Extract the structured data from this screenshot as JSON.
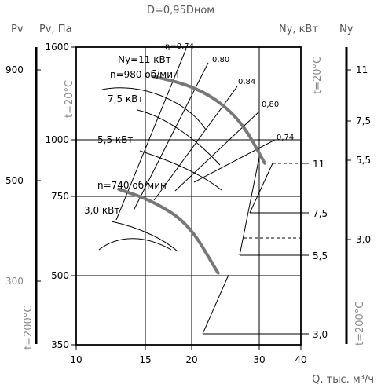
{
  "chart_data": {
    "type": "line",
    "title": "D=0,95Dном",
    "xlabel": "Q, тыс. м³/ч",
    "x_ticks": [
      "10",
      "15",
      "20",
      "30",
      "40"
    ],
    "xlim": [
      10,
      40
    ],
    "x_scale": "log",
    "left_axis_outer": {
      "label": "Pv",
      "ticks": [
        "900",
        "500",
        "300"
      ],
      "temp_label": "t=200°C"
    },
    "left_axis_main": {
      "label": "Pv, Па",
      "ticks": [
        "1600",
        "1000",
        "750",
        "500",
        "350"
      ],
      "temp_label": "t=20°C",
      "ylim": [
        350,
        1600
      ],
      "scale": "log"
    },
    "right_axis_inner": {
      "label": "Ny, кВт",
      "ticks": [
        "11",
        "7,5",
        "5,5",
        "3,0"
      ],
      "temp_label": "t=20°C"
    },
    "right_axis_outer": {
      "label": "Ny",
      "ticks": [
        "11",
        "7,5",
        "5,5",
        "3,0"
      ],
      "temp_label": "t=200°C"
    },
    "series": [
      {
        "name": "n=980 об/мин",
        "x": [
          16.0,
          20.0,
          24.0,
          28.0,
          32.0
        ],
        "y": [
          1380,
          1320,
          1220,
          1080,
          885
        ]
      },
      {
        "name": "n=740 об/мин",
        "x": [
          13.0,
          16.0,
          20.0,
          24.0
        ],
        "y": [
          775,
          730,
          650,
          505
        ]
      }
    ],
    "annotations": {
      "power_labels_upper": [
        "Ny=11 кВт",
        "7,5 кВт",
        "5,5 кВт"
      ],
      "power_labels_lower": [
        "3,0 кВт"
      ],
      "efficiency_labels": [
        "η=0,74",
        "0,80",
        "0,84",
        "0,80",
        "0,74"
      ],
      "power_scale_labels": [
        "11",
        "7,5",
        "5,5",
        "3,0"
      ]
    }
  }
}
